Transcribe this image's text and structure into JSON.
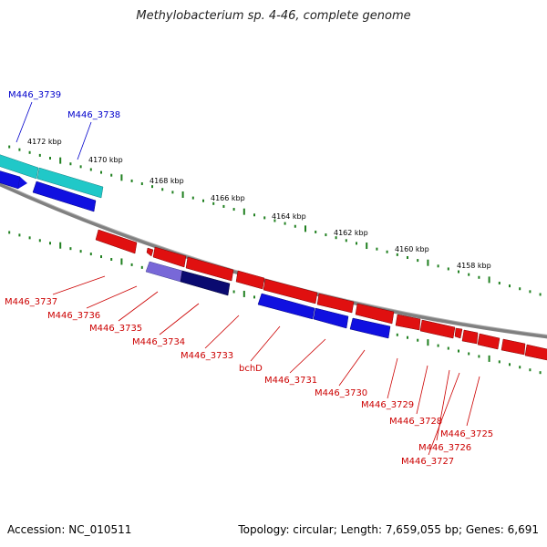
{
  "title": "Methylobacterium sp. 4-46, complete genome",
  "footer": {
    "accession": "Accession: NC_010511",
    "topology": "Topology: circular;",
    "length": "Length: 7,659,055 bp;",
    "genes": "Genes: 6,691"
  },
  "colors": {
    "forward_gene": "#e01010",
    "reverse_gene": "#1010e0",
    "cds_forward": "#20c8c8",
    "rna_reverse": "#7868d8",
    "rna_dark": "#0a0a70",
    "tick": "#208020",
    "backbone": "#808080",
    "label_forward": "#cc0000",
    "label_reverse": "#0000cc"
  },
  "ruler": [
    {
      "label": "4172 kbp"
    },
    {
      "label": "4170 kbp"
    },
    {
      "label": "4168 kbp"
    },
    {
      "label": "4166 kbp"
    },
    {
      "label": "4164 kbp"
    },
    {
      "label": "4162 kbp"
    },
    {
      "label": "4160 kbp"
    },
    {
      "label": "4158 kbp"
    }
  ],
  "genes_reverse": [
    {
      "name": "M446_3739"
    },
    {
      "name": "M446_3738"
    }
  ],
  "genes_forward": [
    {
      "name": "M446_3737"
    },
    {
      "name": "M446_3736"
    },
    {
      "name": "M446_3735"
    },
    {
      "name": "M446_3734"
    },
    {
      "name": "M446_3733"
    },
    {
      "name": "bchD"
    },
    {
      "name": "M446_3731"
    },
    {
      "name": "M446_3730"
    },
    {
      "name": "M446_3729"
    },
    {
      "name": "M446_3728"
    },
    {
      "name": "M446_3726"
    },
    {
      "name": "M446_3727"
    },
    {
      "name": "M446_3725"
    }
  ]
}
